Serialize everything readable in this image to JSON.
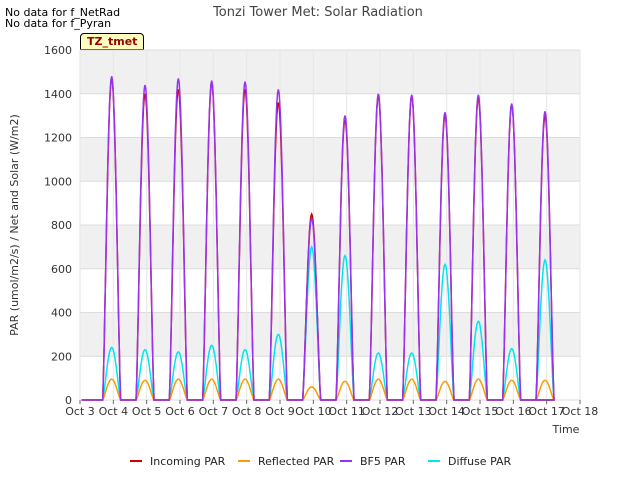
{
  "notes": [
    "No data for f_NetRad",
    "No data for f_Pyran"
  ],
  "badge": "TZ_tmet",
  "chart_data": {
    "type": "line",
    "title": "Tonzi Tower Met: Solar Radiation",
    "xlabel": "Time",
    "ylabel": "PAR (umol/m2/s) / Net and Solar (W/m2)",
    "ylim": [
      0,
      1600
    ],
    "yticks": [
      0,
      200,
      400,
      600,
      800,
      1000,
      1200,
      1400,
      1600
    ],
    "xlim": [
      3,
      18
    ],
    "xticks": [
      3,
      4,
      5,
      6,
      7,
      8,
      9,
      10,
      11,
      12,
      13,
      14,
      15,
      16,
      17,
      18
    ],
    "xtick_labels": [
      "Oct 3",
      "Oct 4",
      "Oct 5",
      "Oct 6",
      "Oct 7",
      "Oct 8",
      "Oct 9",
      "Oct 10",
      "Oct 11",
      "Oct 12",
      "Oct 13",
      "Oct 14",
      "Oct 15",
      "Oct 16",
      "Oct 17",
      "Oct 18"
    ],
    "day_centers": [
      3.95,
      4.95,
      5.95,
      6.95,
      7.95,
      8.95,
      9.95,
      10.95,
      11.95,
      12.95,
      13.95,
      14.95,
      15.95,
      16.95
    ],
    "day_halfwidth": 0.27,
    "series": [
      {
        "name": "Incoming PAR",
        "color": "#cc0000",
        "daily_peaks": [
          1470,
          1400,
          1420,
          1450,
          1420,
          1360,
          850,
          1280,
          1390,
          1390,
          1300,
          1380,
          1350,
          1300
        ]
      },
      {
        "name": "Reflected PAR",
        "color": "#ff9900",
        "daily_peaks": [
          95,
          90,
          95,
          95,
          95,
          95,
          60,
          85,
          95,
          95,
          85,
          95,
          90,
          90
        ]
      },
      {
        "name": "BF5 PAR",
        "color": "#9933ee",
        "daily_peaks": [
          1480,
          1440,
          1470,
          1460,
          1455,
          1420,
          830,
          1300,
          1400,
          1395,
          1315,
          1395,
          1355,
          1320
        ]
      },
      {
        "name": "Diffuse PAR",
        "color": "#00e5ee",
        "daily_peaks": [
          240,
          230,
          220,
          250,
          230,
          300,
          700,
          660,
          215,
          215,
          620,
          360,
          235,
          640
        ]
      }
    ]
  }
}
